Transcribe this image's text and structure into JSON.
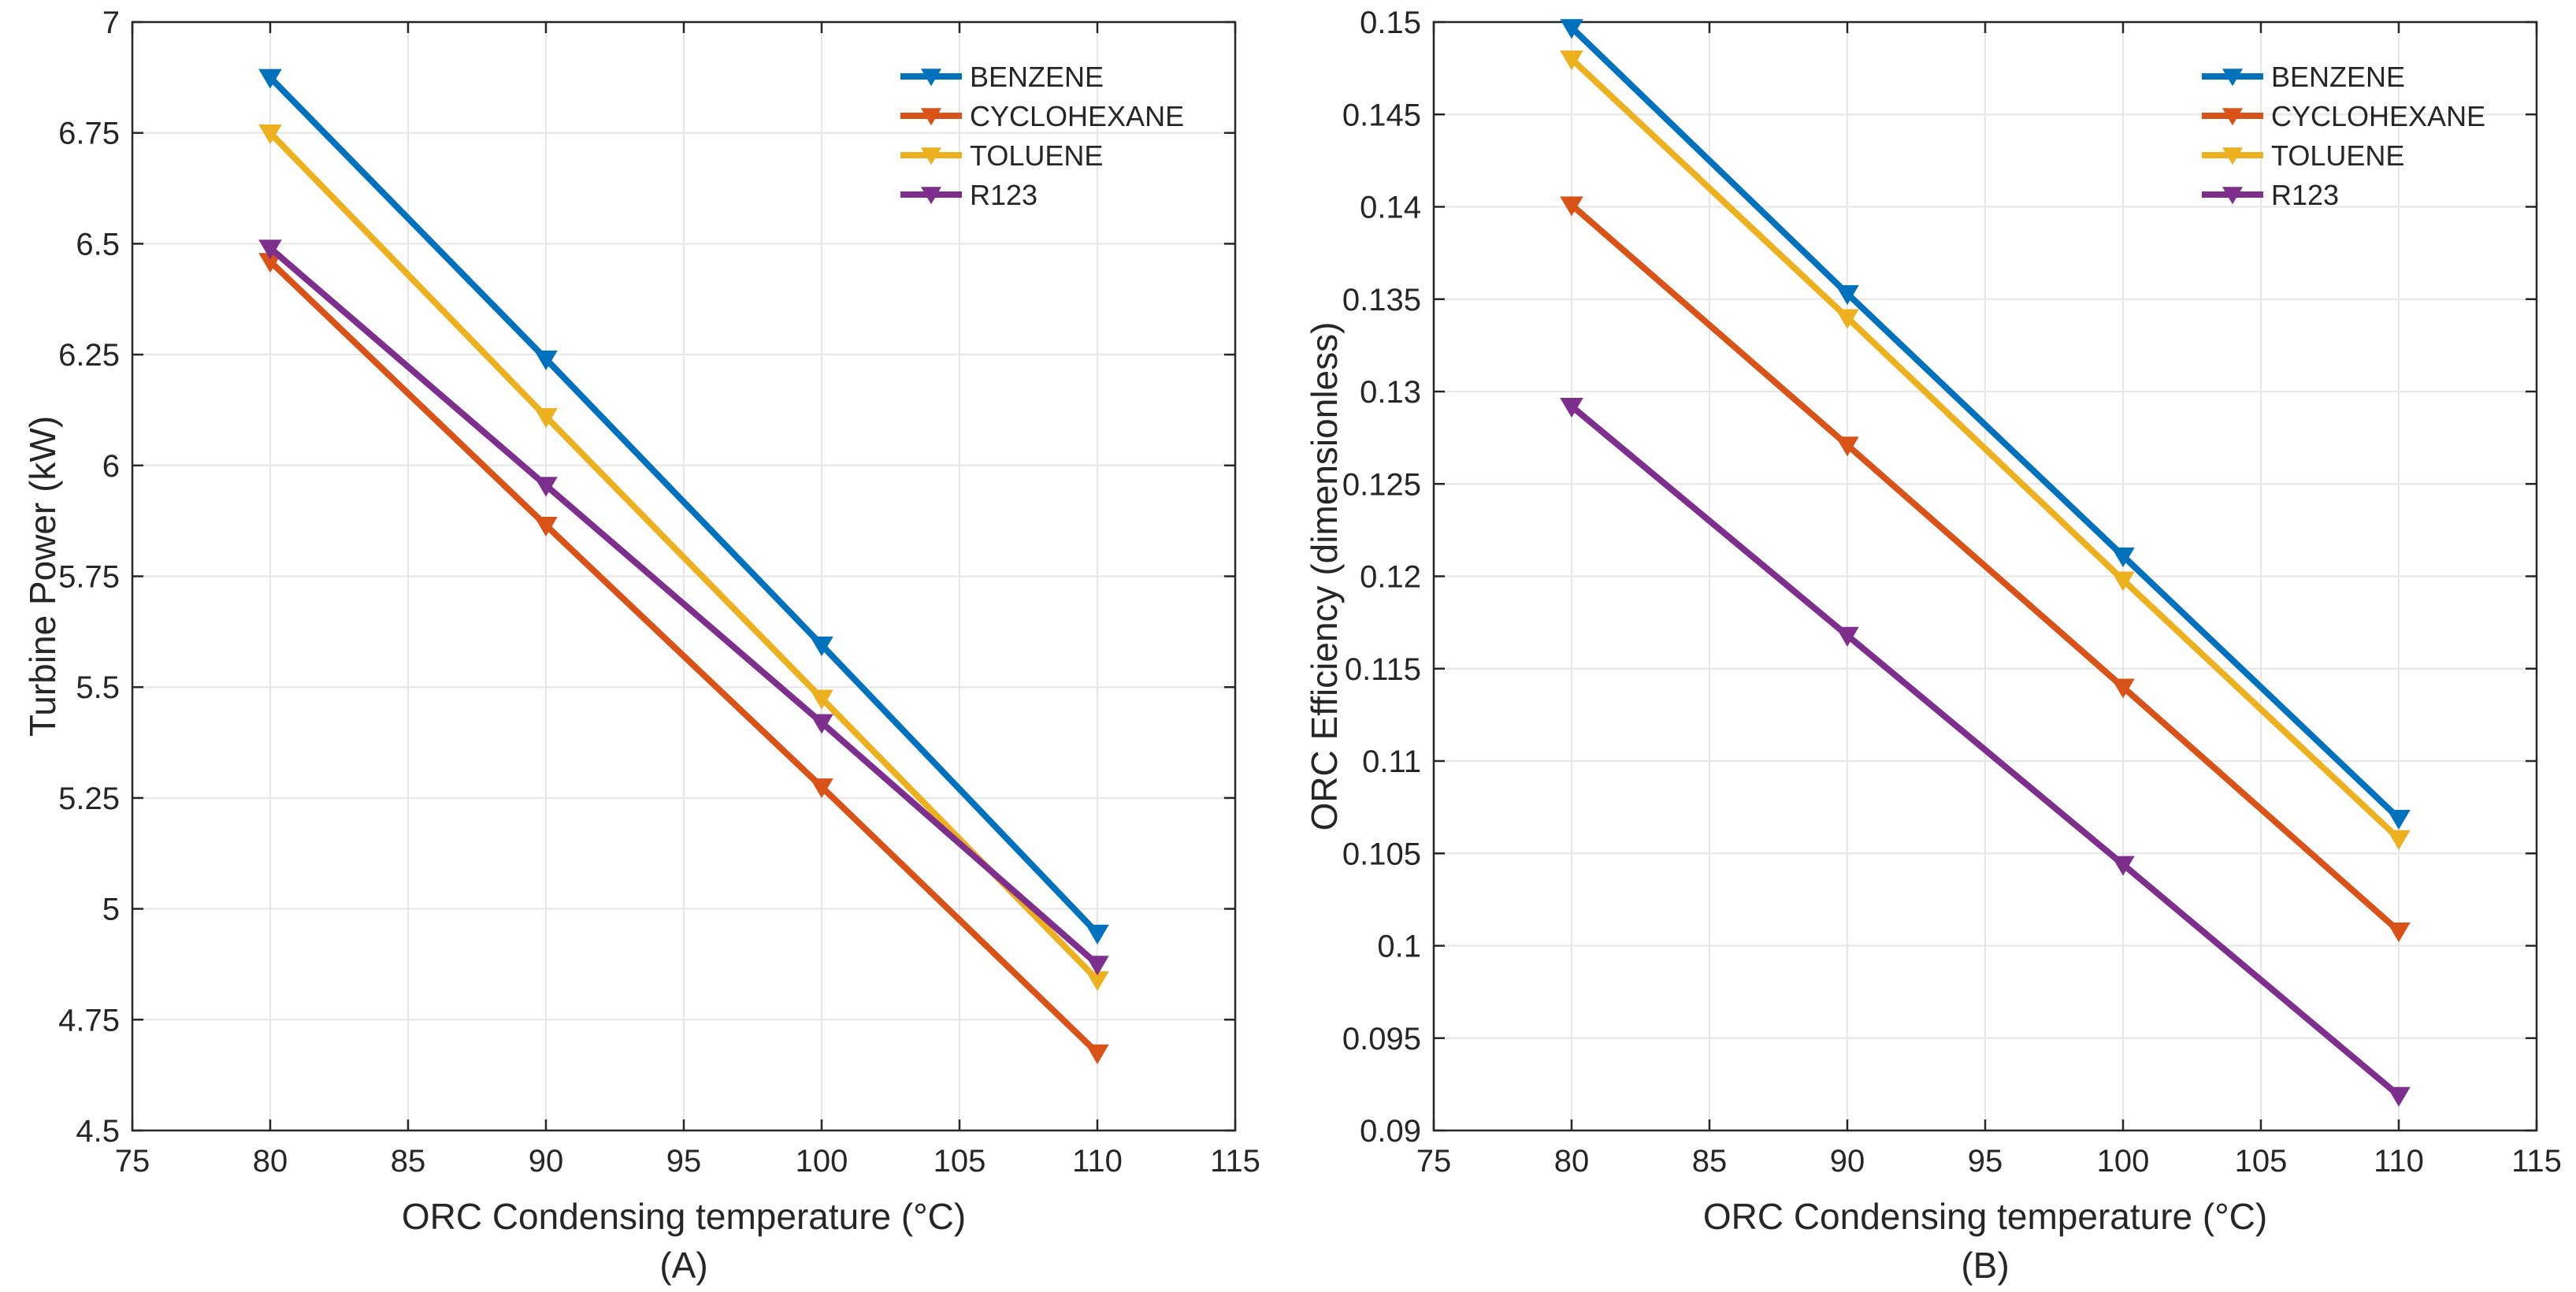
{
  "chart_data": [
    {
      "type": "line",
      "panel_label": "(A)",
      "xlabel": "ORC Condensing temperature (°C)",
      "ylabel": "Turbine Power (kW)",
      "xlim": [
        75,
        115
      ],
      "ylim": [
        4.5,
        7
      ],
      "xticks": [
        75,
        80,
        85,
        90,
        95,
        100,
        105,
        110,
        115
      ],
      "xtick_labels": [
        "75",
        "80",
        "85",
        "90",
        "95",
        "100",
        "105",
        "110",
        "115"
      ],
      "yticks": [
        4.5,
        4.75,
        5,
        5.25,
        5.5,
        5.75,
        6,
        6.25,
        6.5,
        6.75,
        7
      ],
      "ytick_labels": [
        "4.5",
        "4.75",
        "5",
        "5.25",
        "5.5",
        "5.75",
        "6",
        "6.25",
        "6.5",
        "6.75",
        "7"
      ],
      "grid": true,
      "legend_position": "top-right",
      "x": [
        80,
        90,
        100,
        110
      ],
      "series": [
        {
          "name": "BENZENE",
          "color": "#0072BD",
          "values": [
            6.875,
            6.24,
            5.595,
            4.945
          ]
        },
        {
          "name": "CYCLOHEXANE",
          "color": "#D95319",
          "values": [
            6.46,
            5.865,
            5.275,
            4.675
          ]
        },
        {
          "name": "TOLUENE",
          "color": "#EDB120",
          "values": [
            6.75,
            6.11,
            5.475,
            4.84
          ]
        },
        {
          "name": "R123",
          "color": "#7E2F8E",
          "values": [
            6.49,
            5.955,
            5.42,
            4.875
          ]
        }
      ]
    },
    {
      "type": "line",
      "panel_label": "(B)",
      "xlabel": "ORC Condensing temperature (°C)",
      "ylabel": "ORC Efficiency (dimensionless)",
      "xlim": [
        75,
        115
      ],
      "ylim": [
        0.09,
        0.15
      ],
      "xticks": [
        75,
        80,
        85,
        90,
        95,
        100,
        105,
        110,
        115
      ],
      "xtick_labels": [
        "75",
        "80",
        "85",
        "90",
        "95",
        "100",
        "105",
        "110",
        "115"
      ],
      "yticks": [
        0.09,
        0.095,
        0.1,
        0.105,
        0.11,
        0.115,
        0.12,
        0.125,
        0.13,
        0.135,
        0.14,
        0.145,
        0.15
      ],
      "ytick_labels": [
        "0.09",
        "0.095",
        "0.1",
        "0.105",
        "0.11",
        "0.115",
        "0.12",
        "0.125",
        "0.13",
        "0.135",
        "0.14",
        "0.145",
        "0.15"
      ],
      "grid": true,
      "legend_position": "top-right",
      "x": [
        80,
        90,
        100,
        110
      ],
      "series": [
        {
          "name": "BENZENE",
          "color": "#0072BD",
          "values": [
            0.1497,
            0.1353,
            0.1211,
            0.1069
          ]
        },
        {
          "name": "CYCLOHEXANE",
          "color": "#D95319",
          "values": [
            0.1401,
            0.1271,
            0.114,
            0.1008
          ]
        },
        {
          "name": "TOLUENE",
          "color": "#EDB120",
          "values": [
            0.148,
            0.134,
            0.1198,
            0.1058
          ]
        },
        {
          "name": "R123",
          "color": "#7E2F8E",
          "values": [
            0.1292,
            0.1168,
            0.1044,
            0.0919
          ]
        }
      ]
    }
  ]
}
